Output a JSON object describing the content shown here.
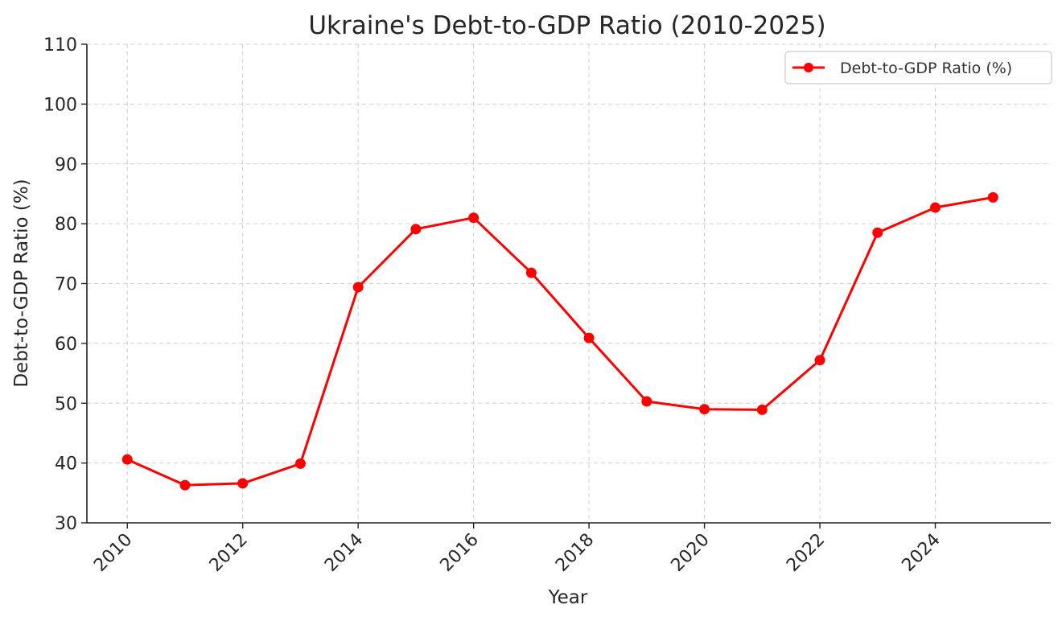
{
  "chart_data": {
    "type": "line",
    "title": "Ukraine's Debt-to-GDP Ratio (2010-2025)",
    "xlabel": "Year",
    "ylabel": "Debt-to-GDP Ratio (%)",
    "x": [
      2010,
      2011,
      2012,
      2013,
      2014,
      2015,
      2016,
      2017,
      2018,
      2019,
      2020,
      2021,
      2022,
      2023,
      2024,
      2025
    ],
    "series": [
      {
        "name": "Debt-to-GDP Ratio (%)",
        "color": "#ff0000",
        "marker": "circle",
        "values": [
          40.6,
          36.3,
          36.6,
          39.9,
          69.4,
          79.1,
          81.0,
          71.8,
          60.9,
          50.3,
          49.0,
          48.9,
          57.2,
          78.5,
          82.7,
          84.4
        ]
      }
    ],
    "xlim": [
      2009.3,
      2026.0
    ],
    "ylim": [
      30,
      110
    ],
    "xticks": [
      2010,
      2012,
      2014,
      2016,
      2018,
      2020,
      2022,
      2024
    ],
    "xtick_labels": [
      "2010",
      "2012",
      "2014",
      "2016",
      "2018",
      "2020",
      "2022",
      "2024"
    ],
    "yticks": [
      30,
      40,
      50,
      60,
      70,
      80,
      90,
      100,
      110
    ],
    "ytick_labels": [
      "30",
      "40",
      "50",
      "60",
      "70",
      "80",
      "90",
      "100",
      "110"
    ],
    "xtick_rotation": 45,
    "grid": true,
    "legend_position": "top-right"
  }
}
